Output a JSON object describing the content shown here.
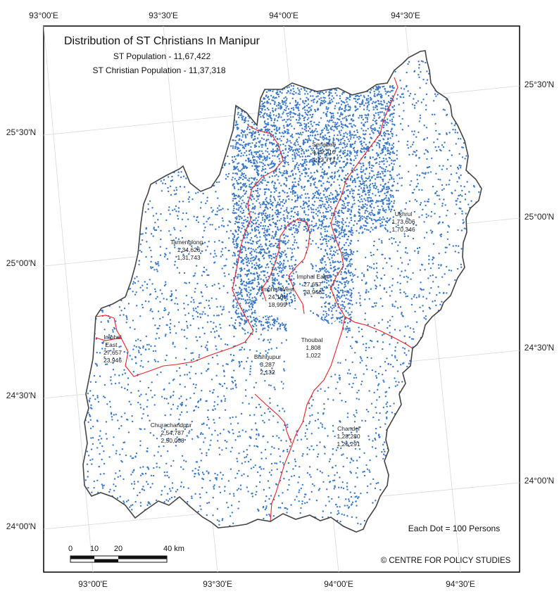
{
  "title": "Distribution of ST Christians In Manipur",
  "subtitle_population": "ST Population - 11,67,422",
  "subtitle_christian": "ST Christian Population - 11,37,318",
  "graticule": {
    "top_labels": [
      "93°00'E",
      "93°30'E",
      "94°00'E",
      "94°30'E"
    ],
    "bottom_labels": [
      "93°00'E",
      "93°30'E",
      "94°00'E",
      "94°30'E"
    ],
    "left_labels": [
      "25°30'N",
      "25°00'N",
      "24°30'N",
      "24°00'N"
    ],
    "right_labels": [
      "25°30'N",
      "25°00'N",
      "24°30'N",
      "24°00'N"
    ]
  },
  "districts": [
    {
      "name": "Senapati",
      "st_population": "4,19,210",
      "st_christian": "4,12,771"
    },
    {
      "name": "Ukhrul",
      "st_population": "1,73,606",
      "st_christian": "1,70,346"
    },
    {
      "name": "Tamenglong",
      "st_population": "1,34,626",
      "st_christian": "1,31,743"
    },
    {
      "name": "Imphal East",
      "st_population": "27,657",
      "st_christian": "23,946"
    },
    {
      "name": "Imphal West",
      "st_population": "24,161",
      "st_christian": "18,999"
    },
    {
      "name": "Thoubal",
      "st_population": "1,808",
      "st_christian": "1,022"
    },
    {
      "name": "Bishnupur",
      "st_population": "3,287",
      "st_christian": "2,132"
    },
    {
      "name": "Churachandpur",
      "st_population": "2,54,787",
      "st_christian": "2,50,068"
    },
    {
      "name": "Chandel",
      "st_population": "1,28,280",
      "st_christian": "1,26,291"
    }
  ],
  "inset_label": {
    "line1": "Imphal",
    "line2": "East",
    "line3": "27,657",
    "line4": "23,946"
  },
  "legend_dot": "Each Dot = 100 Persons",
  "scale_bar": {
    "labels": [
      "0",
      "10",
      "20",
      "40 km"
    ]
  },
  "credit": "© CENTRE FOR POLICY STUDIES",
  "colors": {
    "dot": "#3a78c8",
    "district_border": "#e8232a",
    "state_border": "#444444",
    "frame": "#111111"
  }
}
